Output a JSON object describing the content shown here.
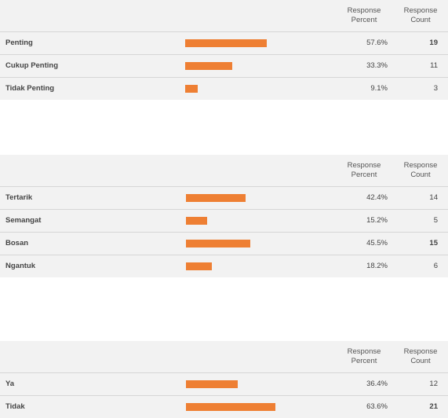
{
  "headers": {
    "response_percent_line1": "Response",
    "response_percent_line2": "Percent",
    "response_count_line1": "Response",
    "response_count_line2": "Count"
  },
  "accent_color": "#ee7f33",
  "tables": [
    {
      "rows": [
        {
          "label": "Penting",
          "percent_text": "57.6%",
          "percent": 57.6,
          "count": "19",
          "bold_count": true
        },
        {
          "label": "Cukup Penting",
          "percent_text": "33.3%",
          "percent": 33.3,
          "count": "11",
          "bold_count": false
        },
        {
          "label": "Tidak Penting",
          "percent_text": "9.1%",
          "percent": 9.1,
          "count": "3",
          "bold_count": false
        }
      ]
    },
    {
      "rows": [
        {
          "label": "Tertarik",
          "percent_text": "42.4%",
          "percent": 42.4,
          "count": "14",
          "bold_count": false
        },
        {
          "label": "Semangat",
          "percent_text": "15.2%",
          "percent": 15.2,
          "count": "5",
          "bold_count": false
        },
        {
          "label": "Bosan",
          "percent_text": "45.5%",
          "percent": 45.5,
          "count": "15",
          "bold_count": true
        },
        {
          "label": "Ngantuk",
          "percent_text": "18.2%",
          "percent": 18.2,
          "count": "6",
          "bold_count": false
        }
      ]
    },
    {
      "rows": [
        {
          "label": "Ya",
          "percent_text": "36.4%",
          "percent": 36.4,
          "count": "12",
          "bold_count": false
        },
        {
          "label": "Tidak",
          "percent_text": "63.6%",
          "percent": 63.6,
          "count": "21",
          "bold_count": true
        }
      ]
    }
  ]
}
